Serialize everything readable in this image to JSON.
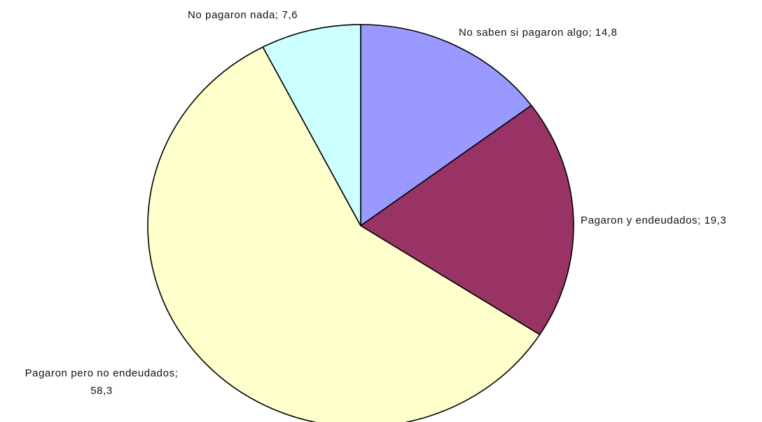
{
  "chart_data": {
    "type": "pie",
    "title": "",
    "start_angle_deg": 0,
    "direction": "clockwise",
    "slices": [
      {
        "label": "No saben si pagaron algo; 14,8",
        "value": 14.8,
        "color": "#9999ff"
      },
      {
        "label": "Pagaron y endeudados; 19,3",
        "value": 19.3,
        "color": "#993366"
      },
      {
        "label_lines": [
          "Pagaron pero no endeudados;",
          "58,3"
        ],
        "value": 58.3,
        "color": "#ffffcc"
      },
      {
        "label": "No pagaron nada; 7,6",
        "value": 7.6,
        "color": "#ccffff"
      }
    ]
  }
}
